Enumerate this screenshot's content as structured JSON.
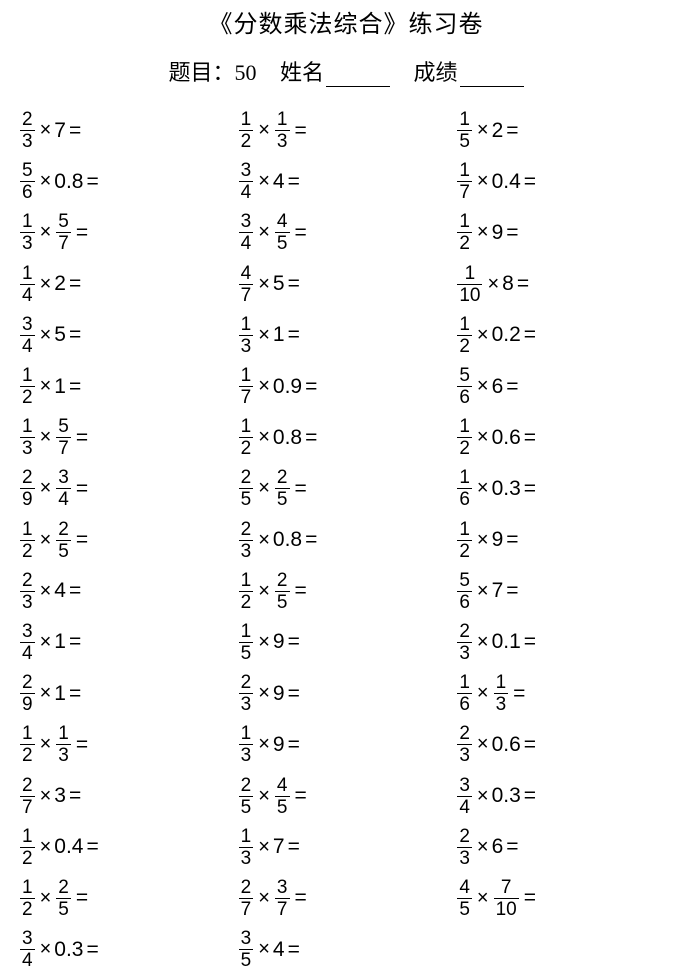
{
  "title": "《分数乘法综合》练习卷",
  "subtitle_label_qty": "题目：",
  "subtitle_qty": "50",
  "subtitle_name": "姓名",
  "subtitle_score": "成绩",
  "columns": [
    [
      [
        [
          "frac",
          "2",
          "3"
        ],
        [
          "op",
          "×"
        ],
        [
          "int",
          "7"
        ],
        [
          "eq",
          "="
        ]
      ],
      [
        [
          "frac",
          "5",
          "6"
        ],
        [
          "op",
          "×"
        ],
        [
          "int",
          "0.8"
        ],
        [
          "eq",
          "="
        ]
      ],
      [
        [
          "frac",
          "1",
          "3"
        ],
        [
          "op",
          "×"
        ],
        [
          "frac",
          "5",
          "7"
        ],
        [
          "eq",
          "="
        ]
      ],
      [
        [
          "frac",
          "1",
          "4"
        ],
        [
          "op",
          "×"
        ],
        [
          "int",
          "2"
        ],
        [
          "eq",
          "="
        ]
      ],
      [
        [
          "frac",
          "3",
          "4"
        ],
        [
          "op",
          "×"
        ],
        [
          "int",
          "5"
        ],
        [
          "eq",
          "="
        ]
      ],
      [
        [
          "frac",
          "1",
          "2"
        ],
        [
          "op",
          "×"
        ],
        [
          "int",
          "1"
        ],
        [
          "eq",
          "="
        ]
      ],
      [
        [
          "frac",
          "1",
          "3"
        ],
        [
          "op",
          "×"
        ],
        [
          "frac",
          "5",
          "7"
        ],
        [
          "eq",
          "="
        ]
      ],
      [
        [
          "frac",
          "2",
          "9"
        ],
        [
          "op",
          "×"
        ],
        [
          "frac",
          "3",
          "4"
        ],
        [
          "eq",
          "="
        ]
      ],
      [
        [
          "frac",
          "1",
          "2"
        ],
        [
          "op",
          "×"
        ],
        [
          "frac",
          "2",
          "5"
        ],
        [
          "eq",
          "="
        ]
      ],
      [
        [
          "frac",
          "2",
          "3"
        ],
        [
          "op",
          "×"
        ],
        [
          "int",
          "4"
        ],
        [
          "eq",
          "="
        ]
      ],
      [
        [
          "frac",
          "3",
          "4"
        ],
        [
          "op",
          "×"
        ],
        [
          "int",
          "1"
        ],
        [
          "eq",
          "="
        ]
      ],
      [
        [
          "frac",
          "2",
          "9"
        ],
        [
          "op",
          "×"
        ],
        [
          "int",
          "1"
        ],
        [
          "eq",
          "="
        ]
      ],
      [
        [
          "frac",
          "1",
          "2"
        ],
        [
          "op",
          "×"
        ],
        [
          "frac",
          "1",
          "3"
        ],
        [
          "eq",
          "="
        ]
      ],
      [
        [
          "frac",
          "2",
          "7"
        ],
        [
          "op",
          "×"
        ],
        [
          "int",
          "3"
        ],
        [
          "eq",
          "="
        ]
      ],
      [
        [
          "frac",
          "1",
          "2"
        ],
        [
          "op",
          "×"
        ],
        [
          "int",
          "0.4"
        ],
        [
          "eq",
          "="
        ]
      ],
      [
        [
          "frac",
          "1",
          "2"
        ],
        [
          "op",
          "×"
        ],
        [
          "frac",
          "2",
          "5"
        ],
        [
          "eq",
          "="
        ]
      ],
      [
        [
          "frac",
          "3",
          "4"
        ],
        [
          "op",
          "×"
        ],
        [
          "int",
          "0.3"
        ],
        [
          "eq",
          "="
        ]
      ]
    ],
    [
      [
        [
          "frac",
          "1",
          "2"
        ],
        [
          "op",
          "×"
        ],
        [
          "frac",
          "1",
          "3"
        ],
        [
          "eq",
          "="
        ]
      ],
      [
        [
          "frac",
          "3",
          "4"
        ],
        [
          "op",
          "×"
        ],
        [
          "int",
          "4"
        ],
        [
          "eq",
          "="
        ]
      ],
      [
        [
          "frac",
          "3",
          "4"
        ],
        [
          "op",
          "×"
        ],
        [
          "frac",
          "4",
          "5"
        ],
        [
          "eq",
          "="
        ]
      ],
      [
        [
          "frac",
          "4",
          "7"
        ],
        [
          "op",
          "×"
        ],
        [
          "int",
          "5"
        ],
        [
          "eq",
          "="
        ]
      ],
      [
        [
          "frac",
          "1",
          "3"
        ],
        [
          "op",
          "×"
        ],
        [
          "int",
          "1"
        ],
        [
          "eq",
          "="
        ]
      ],
      [
        [
          "frac",
          "1",
          "7"
        ],
        [
          "op",
          "×"
        ],
        [
          "int",
          "0.9"
        ],
        [
          "eq",
          "="
        ]
      ],
      [
        [
          "frac",
          "1",
          "2"
        ],
        [
          "op",
          "×"
        ],
        [
          "int",
          "0.8"
        ],
        [
          "eq",
          "="
        ]
      ],
      [
        [
          "frac",
          "2",
          "5"
        ],
        [
          "op",
          "×"
        ],
        [
          "frac",
          "2",
          "5"
        ],
        [
          "eq",
          "="
        ]
      ],
      [
        [
          "frac",
          "2",
          "3"
        ],
        [
          "op",
          "×"
        ],
        [
          "int",
          "0.8"
        ],
        [
          "eq",
          "="
        ]
      ],
      [
        [
          "frac",
          "1",
          "2"
        ],
        [
          "op",
          "×"
        ],
        [
          "frac",
          "2",
          "5"
        ],
        [
          "eq",
          "="
        ]
      ],
      [
        [
          "frac",
          "1",
          "5"
        ],
        [
          "op",
          "×"
        ],
        [
          "int",
          "9"
        ],
        [
          "eq",
          "="
        ]
      ],
      [
        [
          "frac",
          "2",
          "3"
        ],
        [
          "op",
          "×"
        ],
        [
          "int",
          "9"
        ],
        [
          "eq",
          "="
        ]
      ],
      [
        [
          "frac",
          "1",
          "3"
        ],
        [
          "op",
          "×"
        ],
        [
          "int",
          "9"
        ],
        [
          "eq",
          "="
        ]
      ],
      [
        [
          "frac",
          "2",
          "5"
        ],
        [
          "op",
          "×"
        ],
        [
          "frac",
          "4",
          "5"
        ],
        [
          "eq",
          "="
        ]
      ],
      [
        [
          "frac",
          "1",
          "3"
        ],
        [
          "op",
          "×"
        ],
        [
          "int",
          "7"
        ],
        [
          "eq",
          "="
        ]
      ],
      [
        [
          "frac",
          "2",
          "7"
        ],
        [
          "op",
          "×"
        ],
        [
          "frac",
          "3",
          "7"
        ],
        [
          "eq",
          "="
        ]
      ],
      [
        [
          "frac",
          "3",
          "5"
        ],
        [
          "op",
          "×"
        ],
        [
          "int",
          "4"
        ],
        [
          "eq",
          "="
        ]
      ]
    ],
    [
      [
        [
          "frac",
          "1",
          "5"
        ],
        [
          "op",
          "×"
        ],
        [
          "int",
          "2"
        ],
        [
          "eq",
          "="
        ]
      ],
      [
        [
          "frac",
          "1",
          "7"
        ],
        [
          "op",
          "×"
        ],
        [
          "int",
          "0.4"
        ],
        [
          "eq",
          "="
        ]
      ],
      [
        [
          "frac",
          "1",
          "2"
        ],
        [
          "op",
          "×"
        ],
        [
          "int",
          "9"
        ],
        [
          "eq",
          "="
        ]
      ],
      [
        [
          "frac",
          "1",
          "10"
        ],
        [
          "op",
          "×"
        ],
        [
          "int",
          "8"
        ],
        [
          "eq",
          "="
        ]
      ],
      [
        [
          "frac",
          "1",
          "2"
        ],
        [
          "op",
          "×"
        ],
        [
          "int",
          "0.2"
        ],
        [
          "eq",
          "="
        ]
      ],
      [
        [
          "frac",
          "5",
          "6"
        ],
        [
          "op",
          "×"
        ],
        [
          "int",
          "6"
        ],
        [
          "eq",
          "="
        ]
      ],
      [
        [
          "frac",
          "1",
          "2"
        ],
        [
          "op",
          "×"
        ],
        [
          "int",
          "0.6"
        ],
        [
          "eq",
          "="
        ]
      ],
      [
        [
          "frac",
          "1",
          "6"
        ],
        [
          "op",
          "×"
        ],
        [
          "int",
          "0.3"
        ],
        [
          "eq",
          "="
        ]
      ],
      [
        [
          "frac",
          "1",
          "2"
        ],
        [
          "op",
          "×"
        ],
        [
          "int",
          "9"
        ],
        [
          "eq",
          "="
        ]
      ],
      [
        [
          "frac",
          "5",
          "6"
        ],
        [
          "op",
          "×"
        ],
        [
          "int",
          "7"
        ],
        [
          "eq",
          "="
        ]
      ],
      [
        [
          "frac",
          "2",
          "3"
        ],
        [
          "op",
          "×"
        ],
        [
          "int",
          "0.1"
        ],
        [
          "eq",
          "="
        ]
      ],
      [
        [
          "frac",
          "1",
          "6"
        ],
        [
          "op",
          "×"
        ],
        [
          "frac",
          "1",
          "3"
        ],
        [
          "eq",
          "="
        ]
      ],
      [
        [
          "frac",
          "2",
          "3"
        ],
        [
          "op",
          "×"
        ],
        [
          "int",
          "0.6"
        ],
        [
          "eq",
          "="
        ]
      ],
      [
        [
          "frac",
          "3",
          "4"
        ],
        [
          "op",
          "×"
        ],
        [
          "int",
          "0.3"
        ],
        [
          "eq",
          "="
        ]
      ],
      [
        [
          "frac",
          "2",
          "3"
        ],
        [
          "op",
          "×"
        ],
        [
          "int",
          "6"
        ],
        [
          "eq",
          "="
        ]
      ],
      [
        [
          "frac",
          "4",
          "5"
        ],
        [
          "op",
          "×"
        ],
        [
          "frac",
          "7",
          "10"
        ],
        [
          "eq",
          "="
        ]
      ]
    ]
  ]
}
